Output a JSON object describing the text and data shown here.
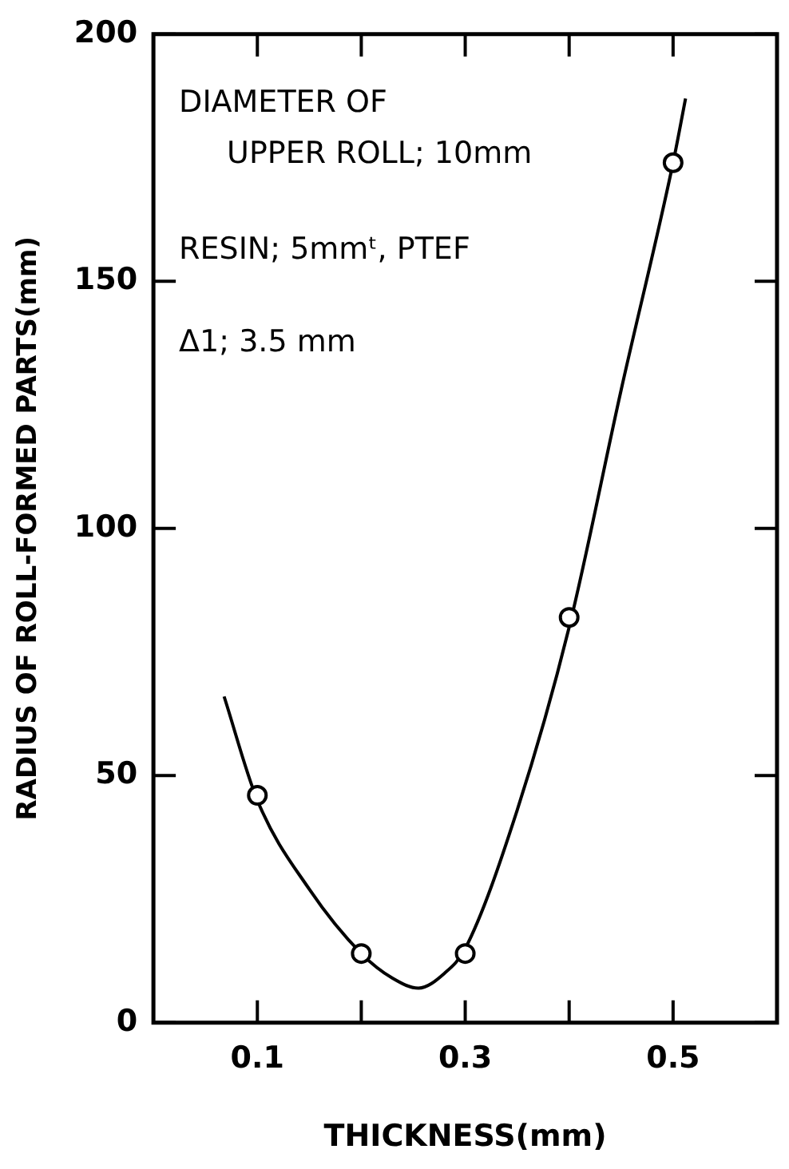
{
  "chart_data": {
    "type": "scatter",
    "xlabel": "THICKNESS(mm)",
    "ylabel": "RADIUS OF ROLL-FORMED PARTS(mm)",
    "annotations": [
      "DIAMETER OF",
      "UPPER ROLL; 10mm",
      "RESIN; 5mmᵗ, PTEF",
      "Δ1; 3.5 mm"
    ],
    "x": [
      0.1,
      0.2,
      0.3,
      0.4,
      0.5
    ],
    "series": [
      {
        "color": "#000000",
        "marker": "circle",
        "values": [
          46,
          14,
          14,
          82,
          174
        ]
      },
      {
        "type": "line",
        "color": "#000000",
        "marker": "none",
        "x": [
          0.068,
          0.1,
          0.15,
          0.2,
          0.23,
          0.255,
          0.28,
          0.3,
          0.35,
          0.4,
          0.45,
          0.5,
          0.512
        ],
        "values": [
          66,
          45,
          27,
          14,
          9,
          7,
          10,
          15,
          43,
          80,
          128,
          174,
          187
        ]
      }
    ],
    "xlim": [
      0,
      0.6
    ],
    "xticks": [
      0.1,
      {
        "value": 0.2,
        "label": null
      },
      0.3,
      {
        "value": 0.4,
        "label": null
      },
      0.5
    ],
    "ylim": [
      0,
      200
    ],
    "yticks": [
      0,
      50,
      100,
      150,
      200
    ],
    "grid": false,
    "legend": false
  }
}
